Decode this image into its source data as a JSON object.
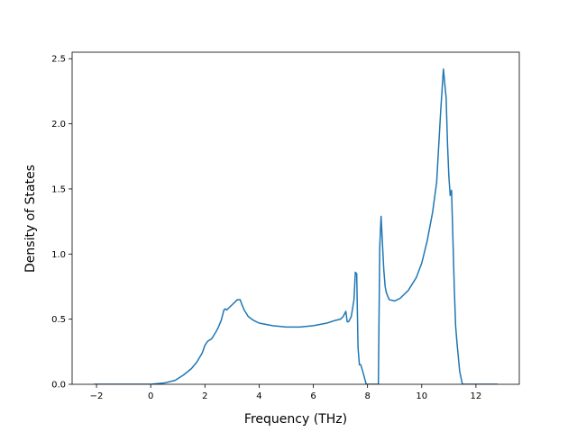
{
  "chart_data": {
    "type": "line",
    "xlabel": "Frequency (THz)",
    "ylabel": "Density of States",
    "xlim": [
      -2.9,
      13.6
    ],
    "ylim": [
      0.0,
      2.55
    ],
    "xticks": [
      -2,
      0,
      2,
      4,
      6,
      8,
      10,
      12
    ],
    "yticks": [
      0.0,
      0.5,
      1.0,
      1.5,
      2.0,
      2.5
    ],
    "xtick_labels": [
      "−2",
      "0",
      "2",
      "4",
      "6",
      "8",
      "10",
      "12"
    ],
    "ytick_labels": [
      "0.0",
      "0.5",
      "1.0",
      "1.5",
      "2.0",
      "2.5"
    ],
    "grid": false,
    "line_color": "#1f77b4",
    "series": [
      {
        "x": [
          -2.1,
          -1.0,
          0.0,
          0.5,
          0.9,
          1.2,
          1.5,
          1.7,
          1.9,
          2.0,
          2.1,
          2.25,
          2.4,
          2.5,
          2.6,
          2.7,
          2.75,
          2.8,
          2.9,
          3.0,
          3.1,
          3.2,
          3.3,
          3.35,
          3.45,
          3.6,
          3.8,
          4.0,
          4.5,
          5.0,
          5.5,
          6.0,
          6.5,
          6.8,
          7.0,
          7.1,
          7.2,
          7.25,
          7.3,
          7.4,
          7.5,
          7.55,
          7.6,
          7.65,
          7.7,
          7.75,
          7.85,
          7.95,
          8.05,
          8.4,
          8.45,
          8.5,
          8.55,
          8.6,
          8.65,
          8.7,
          8.8,
          9.0,
          9.2,
          9.5,
          9.8,
          10.0,
          10.2,
          10.4,
          10.55,
          10.7,
          10.8,
          10.9,
          10.95,
          11.0,
          11.05,
          11.1,
          11.2,
          11.25,
          11.3,
          11.4,
          11.5,
          11.6,
          12.0,
          12.8
        ],
        "y": [
          0.0,
          0.0,
          0.0,
          0.01,
          0.03,
          0.07,
          0.12,
          0.17,
          0.24,
          0.3,
          0.33,
          0.35,
          0.4,
          0.44,
          0.49,
          0.57,
          0.58,
          0.57,
          0.59,
          0.61,
          0.63,
          0.65,
          0.65,
          0.62,
          0.57,
          0.52,
          0.49,
          0.47,
          0.45,
          0.44,
          0.44,
          0.45,
          0.47,
          0.49,
          0.5,
          0.52,
          0.56,
          0.48,
          0.48,
          0.52,
          0.65,
          0.86,
          0.85,
          0.28,
          0.15,
          0.15,
          0.08,
          0.0,
          0.0,
          0.0,
          1.05,
          1.29,
          1.08,
          0.88,
          0.75,
          0.7,
          0.65,
          0.64,
          0.66,
          0.72,
          0.82,
          0.93,
          1.1,
          1.32,
          1.55,
          2.1,
          2.42,
          2.2,
          1.85,
          1.6,
          1.45,
          1.49,
          0.75,
          0.45,
          0.32,
          0.1,
          0.0,
          0.0,
          0.0,
          0.0
        ]
      }
    ]
  }
}
